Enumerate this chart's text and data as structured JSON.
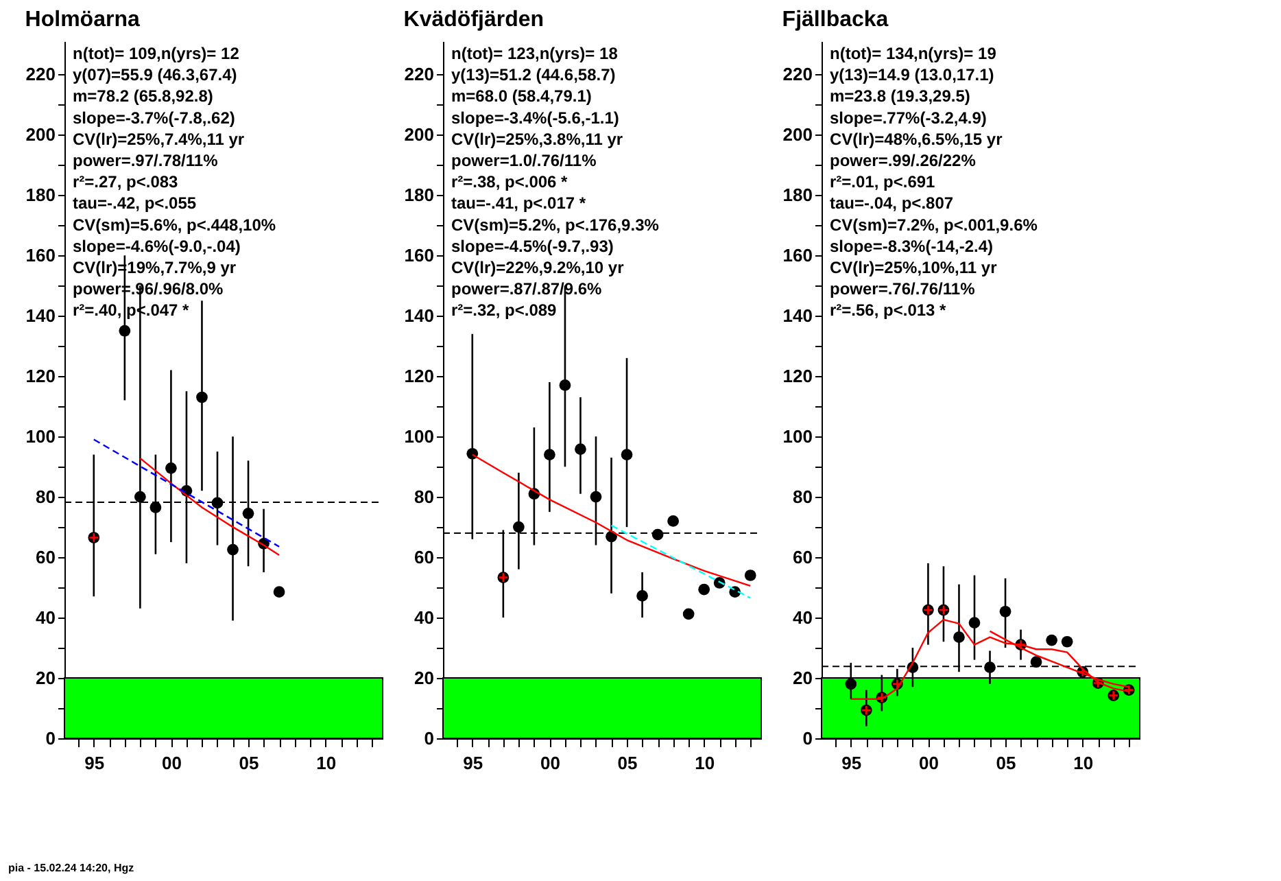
{
  "chart_data": [
    {
      "type": "scatter",
      "title": "Holmöarna",
      "xlim": [
        1993.1,
        2013.7
      ],
      "ylim": [
        0,
        231
      ],
      "xticks": [
        {
          "value": 1994,
          "label": null
        },
        {
          "value": 1995,
          "label": "95"
        },
        {
          "value": 1996,
          "label": null
        },
        {
          "value": 1997,
          "label": null
        },
        {
          "value": 1998,
          "label": null
        },
        {
          "value": 1999,
          "label": null
        },
        {
          "value": 2000,
          "label": "00"
        },
        {
          "value": 2001,
          "label": null
        },
        {
          "value": 2002,
          "label": null
        },
        {
          "value": 2003,
          "label": null
        },
        {
          "value": 2004,
          "label": null
        },
        {
          "value": 2005,
          "label": "05"
        },
        {
          "value": 2006,
          "label": null
        },
        {
          "value": 2007,
          "label": null
        },
        {
          "value": 2008,
          "label": null
        },
        {
          "value": 2009,
          "label": null
        },
        {
          "value": 2010,
          "label": "10"
        },
        {
          "value": 2011,
          "label": null
        },
        {
          "value": 2012,
          "label": null
        },
        {
          "value": 2013,
          "label": null
        }
      ],
      "yticks": [
        0,
        {
          "value": 10,
          "label": null
        },
        20,
        {
          "value": 30,
          "label": null
        },
        40,
        {
          "value": 50,
          "label": null
        },
        60,
        {
          "value": 70,
          "label": null
        },
        80,
        {
          "value": 90,
          "label": null
        },
        100,
        {
          "value": 110,
          "label": null
        },
        120,
        {
          "value": 130,
          "label": null
        },
        140,
        {
          "value": 150,
          "label": null
        },
        160,
        {
          "value": 170,
          "label": null
        },
        180,
        {
          "value": 190,
          "label": null
        },
        200,
        {
          "value": 210,
          "label": null
        },
        220
      ],
      "series": [
        {
          "type": "scatter",
          "marker": "circle",
          "color": "#000000",
          "x": [
            1995,
            1997,
            1998,
            1999,
            2000,
            2001,
            2002,
            2003,
            2004,
            2005,
            2006,
            2007
          ],
          "values": [
            66.5,
            135,
            80,
            76.5,
            89.5,
            82,
            113,
            78,
            62.5,
            74.5,
            64.5,
            48.5
          ],
          "errors": [
            [
              47,
              94
            ],
            [
              112,
              160
            ],
            [
              43,
              150
            ],
            [
              61,
              94
            ],
            [
              65,
              122
            ],
            [
              58,
              115
            ],
            [
              82,
              145
            ],
            [
              64,
              95
            ],
            [
              39,
              100
            ],
            [
              57,
              92
            ],
            [
              55,
              76
            ],
            null
          ]
        },
        {
          "type": "scatter",
          "marker": "cross",
          "color": "#ff0000",
          "x": [
            1995
          ],
          "values": [
            66.5
          ]
        },
        {
          "type": "line",
          "line_style": "solid",
          "color": "#ff0000",
          "x": [
            1998,
            2000,
            2002,
            2004,
            2006,
            2007
          ],
          "values": [
            92.8,
            84.5,
            76.5,
            70,
            64,
            60.7
          ]
        },
        {
          "type": "line",
          "line_style": "dashed",
          "color": "#0000ff",
          "x": [
            1995,
            2007
          ],
          "values": [
            99,
            63.5
          ]
        }
      ],
      "bands": [
        {
          "axis": "y",
          "from": 0,
          "to": 20,
          "color": "#00ff00"
        }
      ],
      "ref_lines": [
        {
          "axis": "y",
          "value": 78.2,
          "line_style": "dashed"
        }
      ],
      "annotations": [
        "n(tot)= 109,n(yrs)= 12",
        "y(07)=55.9 (46.3,67.4)",
        "m=78.2 (65.8,92.8)",
        "slope=-3.7%(-7.8,.62)",
        "CV(lr)=25%,7.4%,11 yr",
        "power=.97/.78/11%",
        "r²=.27, p<.083",
        "tau=-.42, p<.055",
        "CV(sm)=5.6%, p<.448,10%",
        "slope=-4.6%(-9.0,-.04)",
        "CV(lr)=19%,7.7%,9 yr",
        "power=.96/.96/8.0%",
        "r²=.40, p<.047 *"
      ]
    },
    {
      "type": "scatter",
      "title": "Kvädöfjärden",
      "xlim": [
        1993.1,
        2013.7
      ],
      "ylim": [
        0,
        231
      ],
      "xticks": [
        {
          "value": 1994,
          "label": null
        },
        {
          "value": 1995,
          "label": "95"
        },
        {
          "value": 1996,
          "label": null
        },
        {
          "value": 1997,
          "label": null
        },
        {
          "value": 1998,
          "label": null
        },
        {
          "value": 1999,
          "label": null
        },
        {
          "value": 2000,
          "label": "00"
        },
        {
          "value": 2001,
          "label": null
        },
        {
          "value": 2002,
          "label": null
        },
        {
          "value": 2003,
          "label": null
        },
        {
          "value": 2004,
          "label": null
        },
        {
          "value": 2005,
          "label": "05"
        },
        {
          "value": 2006,
          "label": null
        },
        {
          "value": 2007,
          "label": null
        },
        {
          "value": 2008,
          "label": null
        },
        {
          "value": 2009,
          "label": null
        },
        {
          "value": 2010,
          "label": "10"
        },
        {
          "value": 2011,
          "label": null
        },
        {
          "value": 2012,
          "label": null
        },
        {
          "value": 2013,
          "label": null
        }
      ],
      "yticks": [
        0,
        {
          "value": 10,
          "label": null
        },
        20,
        {
          "value": 30,
          "label": null
        },
        40,
        {
          "value": 50,
          "label": null
        },
        60,
        {
          "value": 70,
          "label": null
        },
        80,
        {
          "value": 90,
          "label": null
        },
        100,
        {
          "value": 110,
          "label": null
        },
        120,
        {
          "value": 130,
          "label": null
        },
        140,
        {
          "value": 150,
          "label": null
        },
        160,
        {
          "value": 170,
          "label": null
        },
        180,
        {
          "value": 190,
          "label": null
        },
        200,
        {
          "value": 210,
          "label": null
        },
        220
      ],
      "series": [
        {
          "type": "scatter",
          "marker": "circle",
          "color": "#000000",
          "x": [
            1995,
            1997,
            1998,
            1999,
            2000,
            2001,
            2002,
            2003,
            2004,
            2005,
            2006,
            2007,
            2008,
            2009,
            2010,
            2011,
            2012,
            2013
          ],
          "values": [
            94.3,
            53.3,
            70,
            81,
            94,
            117,
            95.8,
            80,
            66.8,
            94,
            47.2,
            67.5,
            72,
            41.2,
            49.3,
            51.5,
            48.5,
            54
          ],
          "errors": [
            [
              66,
              134
            ],
            [
              40,
              69
            ],
            [
              56,
              88
            ],
            [
              64,
              103
            ],
            [
              75,
              118
            ],
            [
              90,
              150
            ],
            [
              81,
              113
            ],
            [
              64,
              100
            ],
            [
              48,
              93
            ],
            [
              70,
              126
            ],
            [
              40,
              55
            ],
            null,
            null,
            null,
            null,
            null,
            null,
            null
          ]
        },
        {
          "type": "scatter",
          "marker": "cross",
          "color": "#ff0000",
          "x": [
            1997
          ],
          "values": [
            53.3
          ]
        },
        {
          "type": "line",
          "line_style": "solid",
          "color": "#ff0000",
          "x": [
            1995,
            1997,
            2000,
            2003,
            2005,
            2008,
            2010,
            2013
          ],
          "values": [
            94,
            88,
            79.1,
            71.5,
            65.7,
            59.5,
            55.5,
            50.5
          ]
        },
        {
          "type": "line",
          "line_style": "dashed",
          "color": "#00ffff",
          "x": [
            2004,
            2013
          ],
          "values": [
            70.5,
            46.5
          ]
        }
      ],
      "bands": [
        {
          "axis": "y",
          "from": 0,
          "to": 20,
          "color": "#00ff00"
        }
      ],
      "ref_lines": [
        {
          "axis": "y",
          "value": 68.0,
          "line_style": "dashed"
        }
      ],
      "annotations": [
        "n(tot)= 123,n(yrs)= 18",
        "y(13)=51.2 (44.6,58.7)",
        "m=68.0 (58.4,79.1)",
        "slope=-3.4%(-5.6,-1.1)",
        "CV(lr)=25%,3.8%,11 yr",
        "power=1.0/.76/11%",
        "r²=.38, p<.006 *",
        "tau=-.41, p<.017 *",
        "CV(sm)=5.2%, p<.176,9.3%",
        "slope=-4.5%(-9.7,.93)",
        "CV(lr)=22%,9.2%,10 yr",
        "power=.87/.87/9.6%",
        "r²=.32, p<.089"
      ]
    },
    {
      "type": "scatter",
      "title": "Fjällbacka",
      "xlim": [
        1993.1,
        2013.7
      ],
      "ylim": [
        0,
        231
      ],
      "xticks": [
        {
          "value": 1994,
          "label": null
        },
        {
          "value": 1995,
          "label": "95"
        },
        {
          "value": 1996,
          "label": null
        },
        {
          "value": 1997,
          "label": null
        },
        {
          "value": 1998,
          "label": null
        },
        {
          "value": 1999,
          "label": null
        },
        {
          "value": 2000,
          "label": "00"
        },
        {
          "value": 2001,
          "label": null
        },
        {
          "value": 2002,
          "label": null
        },
        {
          "value": 2003,
          "label": null
        },
        {
          "value": 2004,
          "label": null
        },
        {
          "value": 2005,
          "label": "05"
        },
        {
          "value": 2006,
          "label": null
        },
        {
          "value": 2007,
          "label": null
        },
        {
          "value": 2008,
          "label": null
        },
        {
          "value": 2009,
          "label": null
        },
        {
          "value": 2010,
          "label": "10"
        },
        {
          "value": 2011,
          "label": null
        },
        {
          "value": 2012,
          "label": null
        },
        {
          "value": 2013,
          "label": null
        }
      ],
      "yticks": [
        0,
        {
          "value": 10,
          "label": null
        },
        20,
        {
          "value": 30,
          "label": null
        },
        40,
        {
          "value": 50,
          "label": null
        },
        60,
        {
          "value": 70,
          "label": null
        },
        80,
        {
          "value": 90,
          "label": null
        },
        100,
        {
          "value": 110,
          "label": null
        },
        120,
        {
          "value": 130,
          "label": null
        },
        140,
        {
          "value": 150,
          "label": null
        },
        160,
        {
          "value": 170,
          "label": null
        },
        180,
        {
          "value": 190,
          "label": null
        },
        200,
        {
          "value": 210,
          "label": null
        },
        220
      ],
      "series": [
        {
          "type": "scatter",
          "marker": "circle",
          "color": "#000000",
          "x": [
            1995,
            1996,
            1997,
            1998,
            1999,
            2000,
            2001,
            2002,
            2003,
            2004,
            2005,
            2006,
            2007,
            2008,
            2009,
            2010,
            2011,
            2012,
            2013
          ],
          "values": [
            18,
            9.3,
            13.5,
            18,
            23.5,
            42.5,
            42.5,
            33.5,
            38.3,
            23.5,
            42,
            31,
            25.3,
            32.5,
            32,
            22,
            18.3,
            14.2,
            16
          ],
          "errors": [
            [
              13,
              25
            ],
            [
              4,
              16
            ],
            [
              9,
              21
            ],
            [
              14,
              23
            ],
            [
              17,
              30
            ],
            [
              31,
              58
            ],
            [
              32,
              57
            ],
            [
              22,
              51
            ],
            [
              26,
              54
            ],
            [
              18,
              29
            ],
            [
              30,
              53
            ],
            [
              26,
              36
            ],
            null,
            null,
            null,
            null,
            null,
            null,
            null
          ]
        },
        {
          "type": "scatter",
          "marker": "cross",
          "color": "#ff0000",
          "x": [
            1996,
            1997,
            1998,
            2000,
            2001,
            2006,
            2010,
            2011,
            2012,
            2013
          ],
          "values": [
            9.3,
            13.5,
            18,
            42.5,
            42.5,
            31,
            22,
            18.3,
            14.2,
            16
          ]
        },
        {
          "type": "line",
          "line_style": "solid",
          "color": "#ff0000",
          "x": [
            1995,
            1997,
            1998,
            1999,
            2000,
            2001,
            2002,
            2003,
            2004,
            2005,
            2006,
            2007,
            2008,
            2009,
            2010,
            2011,
            2012,
            2013
          ],
          "values": [
            13,
            13,
            16.5,
            25,
            35,
            39.3,
            38,
            31,
            33.5,
            31.5,
            31,
            29.5,
            29.5,
            28.5,
            23,
            18.5,
            16.5,
            15.5
          ]
        },
        {
          "type": "line",
          "line_style": "solid",
          "color": "#ff0000",
          "x": [
            2004,
            2005,
            2006,
            2007,
            2008,
            2009,
            2010,
            2011,
            2012,
            2013
          ],
          "values": [
            35.5,
            32.7,
            30,
            27.5,
            25.5,
            23.5,
            21.5,
            19.5,
            18,
            17
          ]
        }
      ],
      "bands": [
        {
          "axis": "y",
          "from": 0,
          "to": 20,
          "color": "#00ff00"
        }
      ],
      "ref_lines": [
        {
          "axis": "y",
          "value": 23.8,
          "line_style": "dashed"
        }
      ],
      "annotations": [
        "n(tot)= 134,n(yrs)= 19",
        "y(13)=14.9 (13.0,17.1)",
        "m=23.8 (19.3,29.5)",
        "slope=.77%(-3.2,4.9)",
        "CV(lr)=48%,6.5%,15 yr",
        "power=.99/.26/22%",
        "r²=.01, p<.691",
        "tau=-.04, p<.807",
        "CV(sm)=7.2%, p<.001,9.6%",
        "slope=-8.3%(-14,-2.4)",
        "CV(lr)=25%,10%,11 yr",
        "power=.76/.76/11%",
        "r²=.56, p<.013 *"
      ]
    },
    {
      "type": "other",
      "annotations": [
        "pia - 15.02.24 14:20, Hgz"
      ]
    }
  ]
}
